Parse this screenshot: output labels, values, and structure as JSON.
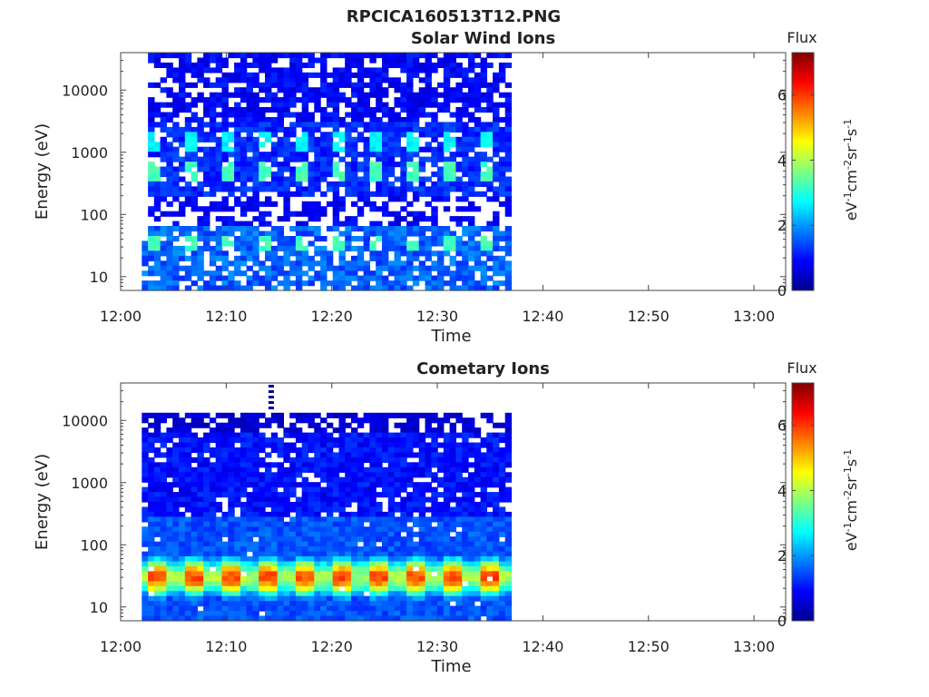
{
  "figure": {
    "title": "RPCICA160513T12.PNG"
  },
  "chart_data": [
    {
      "type": "heatmap",
      "title": "Solar Wind Ions",
      "xlabel": "Time",
      "ylabel": "Energy (eV)",
      "x_ticks": [
        "12:00",
        "12:10",
        "12:20",
        "12:30",
        "12:40",
        "12:50",
        "13:00"
      ],
      "y_ticks": [
        "10",
        "100",
        "1000",
        "10000"
      ],
      "y_scale": "log",
      "ylim": [
        6,
        40000
      ],
      "xlim": [
        "12:00",
        "13:03"
      ],
      "data_span": [
        "12:02",
        "12:37"
      ],
      "colorbar": {
        "label": "Flux",
        "unit": "eV-1cm-2sr-1s-1",
        "ticks": [
          "0",
          "2",
          "4",
          "6"
        ],
        "range": [
          0,
          7.3
        ]
      },
      "features": [
        {
          "energy_eV": 1500,
          "flux": 2.5,
          "note": "periodic bursts"
        },
        {
          "energy_eV": 500,
          "flux": 3.0,
          "note": "periodic bursts"
        },
        {
          "energy_eV": 35,
          "flux": 3.0,
          "note": "periodic bursts"
        },
        {
          "energy_eV": 12,
          "flux": 1.8,
          "note": "background"
        }
      ]
    },
    {
      "type": "heatmap",
      "title": "Cometary Ions",
      "xlabel": "Time",
      "ylabel": "Energy (eV)",
      "x_ticks": [
        "12:00",
        "12:10",
        "12:20",
        "12:30",
        "12:40",
        "12:50",
        "13:00"
      ],
      "y_ticks": [
        "10",
        "100",
        "1000",
        "10000"
      ],
      "y_scale": "log",
      "ylim": [
        6,
        40000
      ],
      "xlim": [
        "12:00",
        "13:03"
      ],
      "data_span": [
        "12:02",
        "12:37"
      ],
      "colorbar": {
        "label": "Flux",
        "unit": "eV-1cm-2sr-1s-1",
        "ticks": [
          "0",
          "2",
          "4",
          "6"
        ],
        "range": [
          0,
          7.3
        ]
      },
      "features": [
        {
          "energy_eV": 30,
          "flux": 5.8,
          "note": "peak flux band"
        },
        {
          "energy_eV": 80,
          "flux": 4.0,
          "note": "upper flank"
        },
        {
          "energy_eV": 12,
          "flux": 2.5,
          "note": "lower flank"
        },
        {
          "energy_eV": 1000,
          "flux": 0.8,
          "note": "background"
        }
      ]
    }
  ]
}
